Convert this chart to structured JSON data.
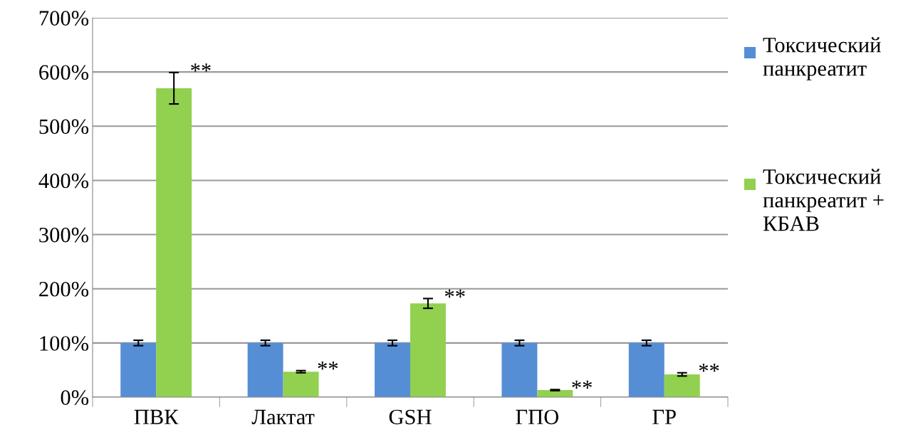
{
  "chart_data": {
    "type": "bar",
    "categories": [
      "ПВК",
      "Лактат",
      "GSH",
      "ГПО",
      "ГР"
    ],
    "series": [
      {
        "name": "Токсический панкреатит",
        "color": "#558ed5",
        "values": [
          100,
          100,
          100,
          100,
          100
        ],
        "errors": [
          5,
          5,
          5,
          5,
          5
        ]
      },
      {
        "name": "Токсический панкреатит + КБАВ",
        "color": "#92d050",
        "values": [
          570,
          47,
          173,
          13,
          42
        ],
        "errors": [
          29,
          2,
          9,
          1,
          3
        ]
      }
    ],
    "ylim": [
      0,
      700
    ],
    "yticks": [
      {
        "value": 0,
        "label": "0%"
      },
      {
        "value": 100,
        "label": "100%"
      },
      {
        "value": 200,
        "label": "200%"
      },
      {
        "value": 300,
        "label": "300%"
      },
      {
        "value": 400,
        "label": "400%"
      },
      {
        "value": 500,
        "label": "500%"
      },
      {
        "value": 600,
        "label": "600%"
      },
      {
        "value": 700,
        "label": "700%"
      }
    ],
    "grid": "y",
    "legend": "right",
    "annotations": [
      {
        "text": "**",
        "x": "ПВК",
        "y": 570
      },
      {
        "text": "**",
        "x": "Лактат",
        "y": 47
      },
      {
        "text": "**",
        "x": "GSH",
        "y": 173
      },
      {
        "text": "**",
        "x": "ГПО",
        "y": 13
      },
      {
        "text": "**",
        "x": "ГР",
        "y": 42
      }
    ]
  }
}
